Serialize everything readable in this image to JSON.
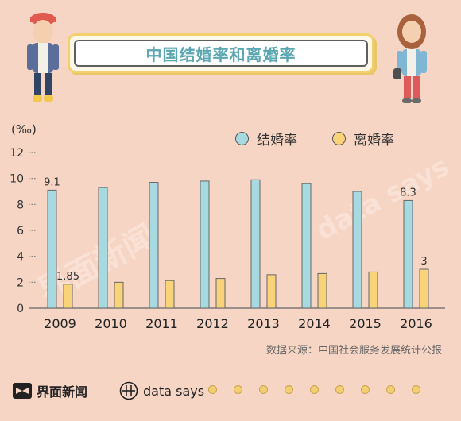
{
  "title": "中国结婚率和离婚率",
  "unit": "(‰)",
  "legend": {
    "marriage": "结婚率",
    "divorce": "离婚率"
  },
  "source": "数据来源：中国社会服务发展统计公报",
  "footer": {
    "brand": "界面新闻",
    "data_says": "data says"
  },
  "watermark": {
    "brand": "界面新闻",
    "data_says": "data says"
  },
  "colors": {
    "marriage": "#a7d9e0",
    "divorce": "#f8d37a",
    "title": "#5aa7b1",
    "background": "#f6d5c4"
  },
  "chart_data": {
    "type": "bar",
    "categories": [
      "2009",
      "2010",
      "2011",
      "2012",
      "2013",
      "2014",
      "2015",
      "2016"
    ],
    "series": [
      {
        "name": "结婚率",
        "values": [
          9.1,
          9.3,
          9.7,
          9.8,
          9.9,
          9.6,
          9.0,
          8.3
        ]
      },
      {
        "name": "离婚率",
        "values": [
          1.85,
          2.0,
          2.13,
          2.29,
          2.58,
          2.67,
          2.79,
          3.0
        ]
      }
    ],
    "data_labels": [
      {
        "series": 0,
        "index": 0,
        "text": "9.1"
      },
      {
        "series": 0,
        "index": 7,
        "text": "8.3"
      },
      {
        "series": 1,
        "index": 0,
        "text": "1.85"
      },
      {
        "series": 1,
        "index": 7,
        "text": "3"
      }
    ],
    "yticks": [
      0,
      2,
      4,
      6,
      8,
      10,
      12
    ],
    "ylim": [
      0,
      12
    ],
    "grid": false
  }
}
